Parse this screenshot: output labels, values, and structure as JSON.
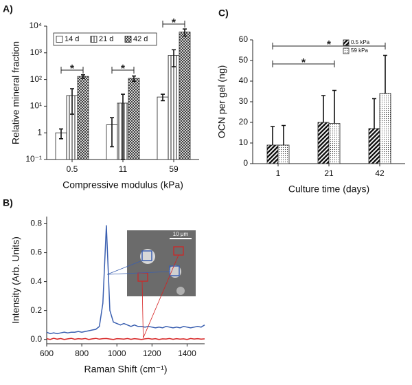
{
  "chart_data": [
    {
      "type": "bar",
      "panel": "A)",
      "xlabel": "Compressive modulus (kPa)",
      "ylabel": "Relative mineral fraction",
      "categories": [
        "0.5",
        "11",
        "59"
      ],
      "series": [
        {
          "name": "14 d",
          "pattern": "none",
          "color": "#ffffff",
          "values": [
            1,
            2,
            22
          ],
          "errors": [
            0.4,
            1.7,
            6
          ]
        },
        {
          "name": "21 d",
          "pattern": "vertical-lines",
          "color": "#ffffff",
          "values": [
            25,
            13,
            800
          ],
          "errors": [
            20,
            15,
            500
          ]
        },
        {
          "name": "42 d",
          "pattern": "crosshatch",
          "color": "#ffffff",
          "values": [
            130,
            110,
            6000
          ],
          "errors": [
            20,
            25,
            1800
          ]
        }
      ],
      "error_bars": "both",
      "log_y": true,
      "ylim": [
        0.1,
        10000
      ],
      "yticks": [
        {
          "value": 0.1,
          "label": "10⁻¹"
        },
        1,
        {
          "value": 10,
          "label": "10¹"
        },
        {
          "value": 100,
          "label": "10²"
        },
        {
          "value": 1000,
          "label": "10³"
        },
        {
          "value": 10000,
          "label": "10⁴"
        }
      ],
      "legend": "upper left",
      "annotations": [
        "*",
        "*",
        "*"
      ]
    },
    {
      "type": "line",
      "panel": "B)",
      "xlabel": "Raman Shift (cm⁻¹)",
      "ylabel": "Intensity (Arb. Units)",
      "x": [
        600,
        620,
        640,
        660,
        680,
        700,
        720,
        740,
        760,
        780,
        800,
        820,
        840,
        860,
        880,
        900,
        920,
        940,
        960,
        980,
        1000,
        1020,
        1040,
        1060,
        1080,
        1100,
        1120,
        1140,
        1160,
        1180,
        1200,
        1220,
        1240,
        1260,
        1280,
        1300,
        1320,
        1340,
        1360,
        1380,
        1400,
        1420,
        1440,
        1460,
        1480,
        1500
      ],
      "series": [
        {
          "color": "#3a5fb0",
          "values": [
            0.05,
            0.04,
            0.045,
            0.04,
            0.045,
            0.05,
            0.045,
            0.05,
            0.05,
            0.055,
            0.05,
            0.055,
            0.06,
            0.065,
            0.07,
            0.09,
            0.25,
            0.79,
            0.2,
            0.12,
            0.11,
            0.1,
            0.11,
            0.1,
            0.09,
            0.1,
            0.09,
            0.09,
            0.085,
            0.09,
            0.085,
            0.08,
            0.085,
            0.08,
            0.09,
            0.085,
            0.08,
            0.085,
            0.08,
            0.09,
            0.085,
            0.08,
            0.085,
            0.09,
            0.085,
            0.1
          ]
        },
        {
          "color": "#d62020",
          "values": [
            0.005,
            0.0,
            0.008,
            0.002,
            0.006,
            0.0,
            0.004,
            0.007,
            0.001,
            0.005,
            0.003,
            0.006,
            0.0,
            0.004,
            0.007,
            0.002,
            0.005,
            0.006,
            0.003,
            0.0,
            0.005,
            0.004,
            0.002,
            0.006,
            0.001,
            0.005,
            0.003,
            0.0,
            0.004,
            0.006,
            0.002,
            0.005,
            0.0,
            0.004,
            0.003,
            0.006,
            0.001,
            0.005,
            0.002,
            0.004,
            0.0,
            0.006,
            0.003,
            0.005,
            0.002,
            0.004
          ]
        }
      ],
      "xlim": [
        600,
        1500
      ],
      "xticks": [
        600,
        800,
        1000,
        1200,
        1400
      ],
      "ylim": [
        -0.03,
        0.85
      ],
      "yticks": [
        {
          "value": 0,
          "label": "0.0"
        },
        0.2,
        0.4,
        0.6,
        0.8
      ],
      "inset_label": "10 μm"
    },
    {
      "type": "bar",
      "panel": "C)",
      "xlabel": "Culture time (days)",
      "ylabel": "OCN per gel (ng)",
      "categories": [
        "1",
        "21",
        "42"
      ],
      "series": [
        {
          "name": "0.5 kPa",
          "pattern": "diagonal",
          "color": "#ffffff",
          "values": [
            9,
            20,
            17
          ],
          "errors": [
            9,
            13,
            14.5
          ]
        },
        {
          "name": "59 kPa",
          "pattern": "dots",
          "color": "#ffffff",
          "values": [
            9,
            19.5,
            34
          ],
          "errors": [
            9.5,
            16,
            18.5
          ]
        }
      ],
      "error_bars": "upper",
      "log_y": false,
      "ylim": [
        0,
        60
      ],
      "yticks": [
        0,
        10,
        20,
        30,
        40,
        50,
        60
      ],
      "legend": "upper right",
      "annotations": [
        "*",
        "*"
      ]
    }
  ]
}
